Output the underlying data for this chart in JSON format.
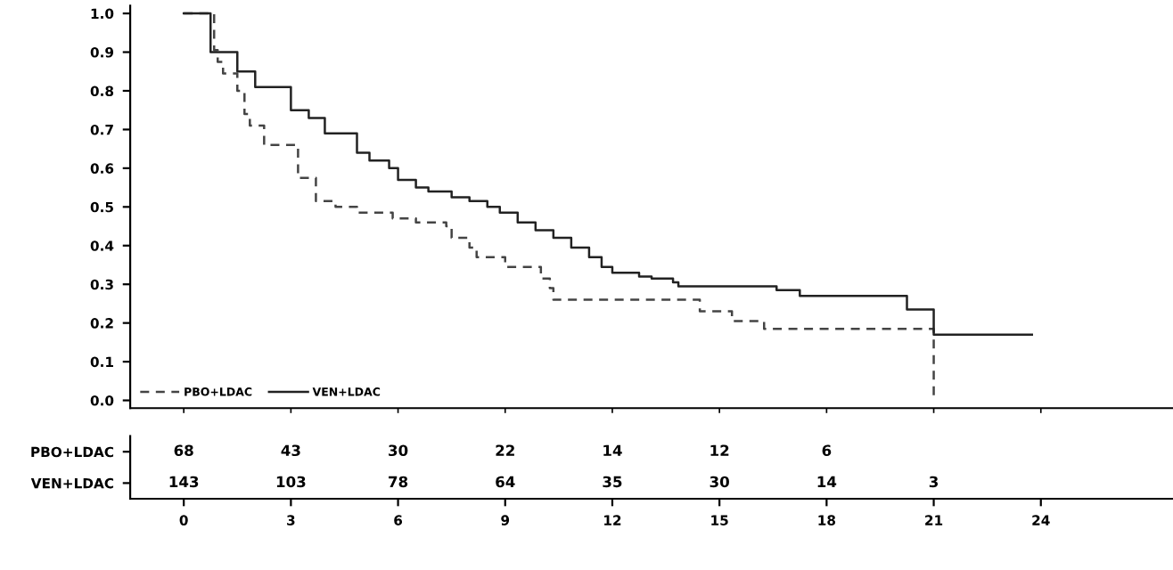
{
  "chart_data": [
    {
      "type": "step",
      "xlim": [
        -1.5,
        27.7
      ],
      "xticks": [
        0,
        3,
        6,
        9,
        12,
        15,
        18,
        21,
        24
      ],
      "ylim": [
        -0.02,
        1.02
      ],
      "yticks": [
        {
          "value": 0.0,
          "label": "0.0"
        },
        0.1,
        0.2,
        0.3,
        0.4,
        0.5,
        0.6,
        0.7,
        0.8,
        0.9,
        {
          "value": 1.0,
          "label": "1.0"
        }
      ],
      "tick_labels": "y",
      "legend": "bottom left",
      "grid": false,
      "series": [
        {
          "name": "PBO+LDAC",
          "color": "#444444",
          "line_style": "dashed",
          "x": [
            0,
            0.85,
            0.95,
            1.1,
            1.5,
            1.7,
            1.85,
            2.25,
            3.2,
            3.7,
            4.25,
            4.85,
            5.85,
            6.5,
            7.35,
            7.5,
            8.0,
            8.2,
            9.0,
            10.0,
            10.25,
            10.35,
            14.45,
            15.35,
            16.25,
            21.0
          ],
          "values": [
            1.0,
            0.905,
            0.875,
            0.845,
            0.8,
            0.74,
            0.71,
            0.66,
            0.575,
            0.515,
            0.5,
            0.485,
            0.47,
            0.46,
            0.45,
            0.42,
            0.395,
            0.37,
            0.345,
            0.315,
            0.29,
            0.26,
            0.23,
            0.205,
            0.185,
            0.0
          ]
        },
        {
          "name": "VEN+LDAC",
          "color": "#222222",
          "line_style": "solid",
          "x": [
            0,
            0.75,
            1.5,
            2.0,
            3.0,
            3.5,
            3.95,
            4.85,
            5.2,
            5.75,
            6.0,
            6.5,
            6.85,
            7.5,
            8.0,
            8.5,
            8.85,
            9.35,
            9.85,
            10.35,
            10.85,
            11.35,
            11.7,
            12.0,
            12.75,
            13.1,
            13.7,
            13.85,
            16.6,
            17.25,
            20.25,
            21.0,
            23.75
          ],
          "values": [
            1.0,
            0.9,
            0.85,
            0.81,
            0.75,
            0.73,
            0.69,
            0.64,
            0.62,
            0.6,
            0.57,
            0.55,
            0.54,
            0.525,
            0.515,
            0.5,
            0.485,
            0.46,
            0.44,
            0.42,
            0.395,
            0.37,
            0.345,
            0.33,
            0.32,
            0.315,
            0.305,
            0.295,
            0.285,
            0.27,
            0.235,
            0.17,
            0.17
          ]
        }
      ]
    },
    {
      "type": "heatmap",
      "categories": [
        "0",
        "3",
        "6",
        "9",
        "12",
        "15",
        "18",
        "21",
        "24"
      ],
      "y_categories": [
        "PBO+LDAC",
        "VEN+LDAC"
      ],
      "data_labels": true,
      "cells": [
        [
          68,
          43,
          30,
          22,
          14,
          12,
          6,
          null,
          null
        ],
        [
          143,
          103,
          78,
          64,
          35,
          30,
          14,
          3,
          null
        ]
      ]
    }
  ]
}
